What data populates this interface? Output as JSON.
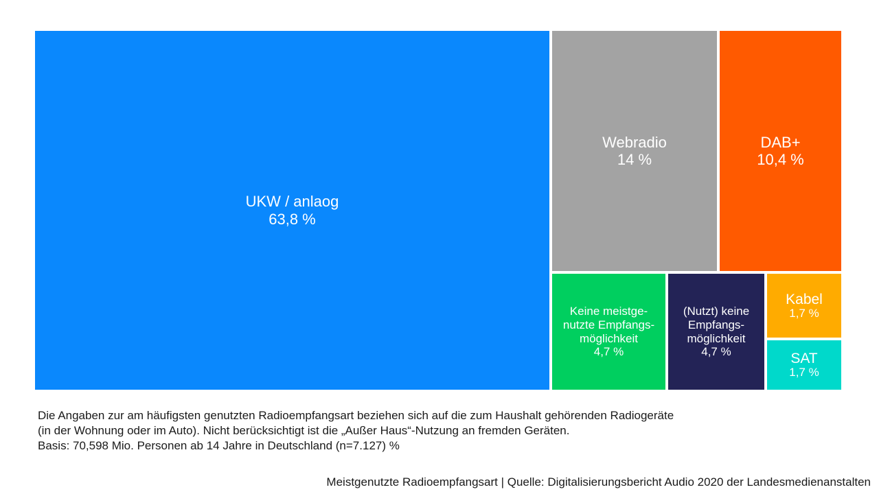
{
  "chart_data": {
    "type": "treemap",
    "items": [
      {
        "label": "UKW / anlaog",
        "value_label": "63,8 %",
        "value": 63.8,
        "color": "#0a88fd"
      },
      {
        "label": "Webradio",
        "value_label": "14 %",
        "value": 14,
        "color": "#a3a3a3"
      },
      {
        "label": "DAB+",
        "value_label": "10,4 %",
        "value": 10.4,
        "color": "#ff5a00"
      },
      {
        "label": "Keine meistge-\nnutzte Empfangs-\nmöglichkeit",
        "value_label": "4,7 %",
        "value": 4.7,
        "color": "#00cf5f"
      },
      {
        "label": "(Nutzt) keine\nEmpfangs-\nmöglichkeit",
        "value_label": "4,7 %",
        "value": 4.7,
        "color": "#232356"
      },
      {
        "label": "Kabel",
        "value_label": "1,7 %",
        "value": 1.7,
        "color": "#ffab00"
      },
      {
        "label": "SAT",
        "value_label": "1,7 %",
        "value": 1.7,
        "color": "#00d9cb"
      }
    ]
  },
  "note": {
    "line1": "Die Angaben zur am häufigsten genutzten Radioempfangsart beziehen sich auf die zum Haushalt gehörenden Radiogeräte",
    "line2": "(in der Wohnung oder im Auto). Nicht berücksichtigt ist die „Außer Haus“-Nutzung an fremden Geräten.",
    "line3": "Basis: 70,598 Mio. Personen ab 14 Jahre in Deutschland (n=7.127) %"
  },
  "source": "Meistgenutzte Radioempfangsart | Quelle: Digitalisierungsbericht Audio 2020 der Landesmedienanstalten"
}
